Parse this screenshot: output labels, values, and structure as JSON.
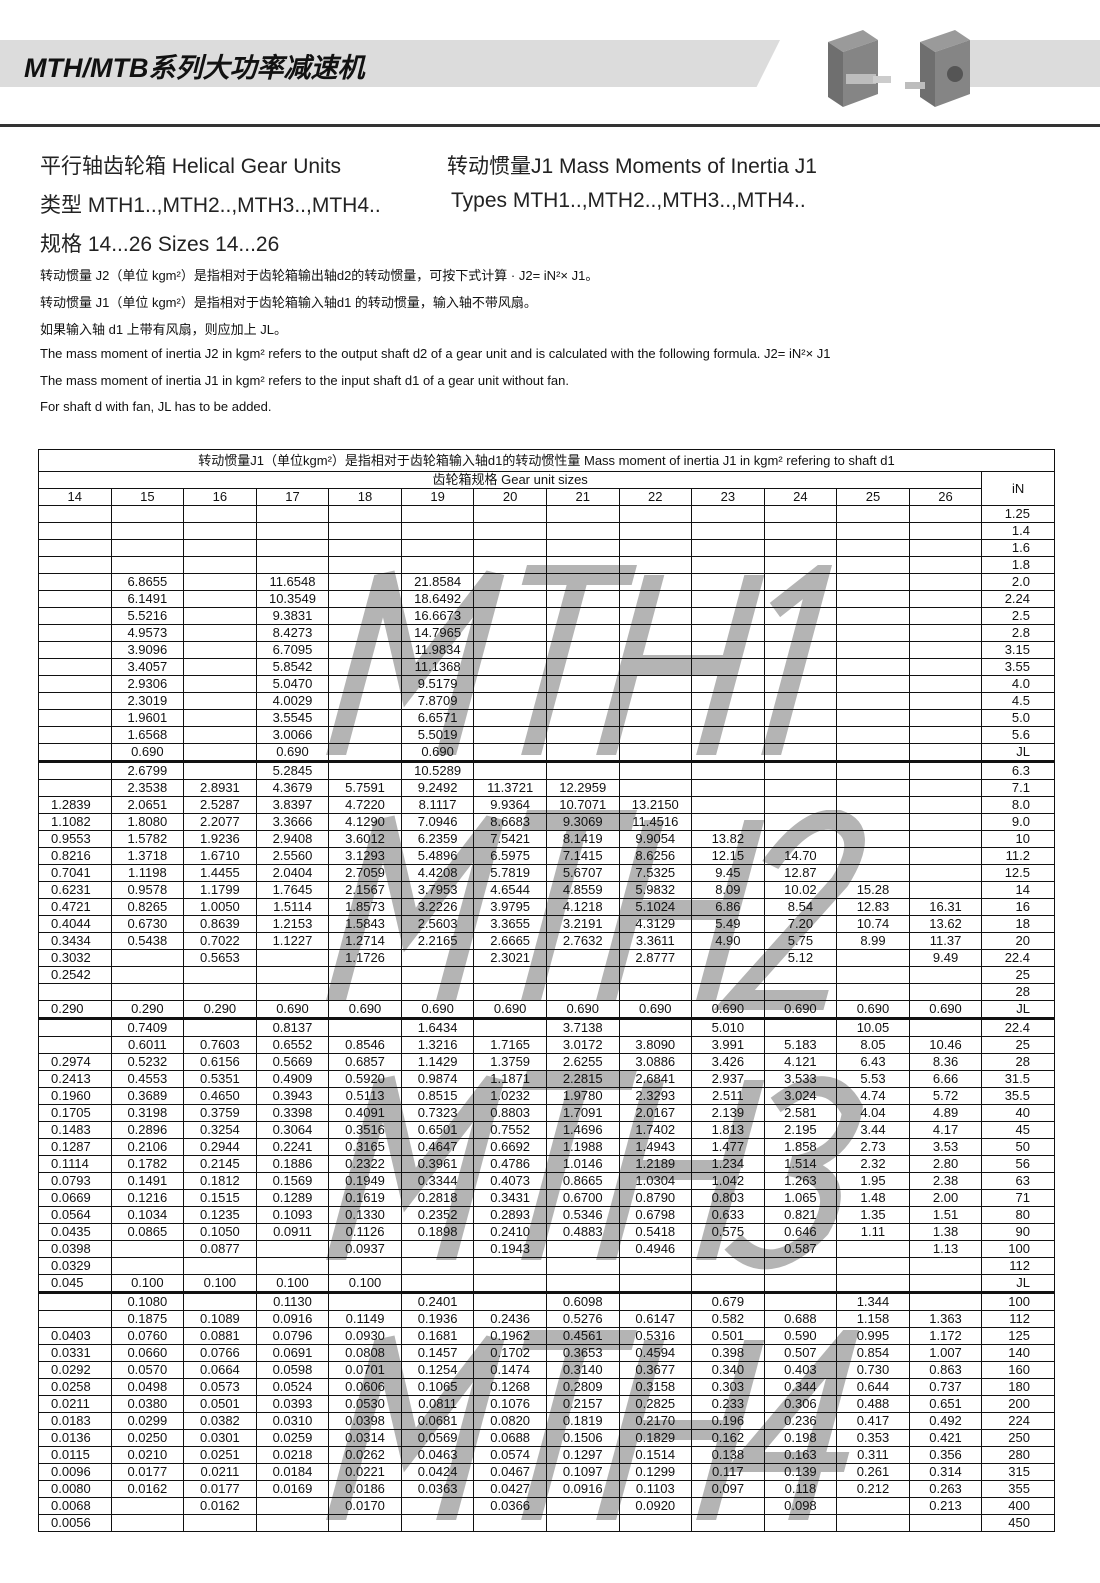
{
  "header": {
    "title": "MTH/MTB系列大功率减速机",
    "product_images": [
      "helical-gear-unit-icon",
      "bevel-helical-gear-unit-icon"
    ]
  },
  "headings": {
    "line1_left": "平行轴齿轮箱 Helical Gear Units",
    "line1_right": "转动惯量J1 Mass Moments of Inertia J1",
    "line2_left": "类型 MTH1..,MTH2..,MTH3..,MTH4..",
    "line2_right": "Types MTH1..,MTH2..,MTH3..,MTH4..",
    "line3": "规格 14...26 Sizes 14...26"
  },
  "notes": [
    "转动惯量 J2（单位 kgm²）是指相对于齿轮箱输出轴d2的转动惯量，可按下式计算 · J2= iN²× J1。",
    "转动惯量 J1（单位 kgm²）是指相对于齿轮箱输入轴d1 的转动惯量，输入轴不带风扇。",
    "如果输入轴 d1 上带有风扇，则应加上 JL。",
    "The mass moment of inertia J2 in kgm² refers to the output shaft d2 of a gear unit and is calculated with the following formula. J2= iN²× J1",
    "The mass moment of inertia J1 in kgm² refers to the input shaft d1 of a gear unit without fan.",
    "For shaft d with fan, JL has to be added."
  ],
  "table": {
    "caption": "转动惯量J1（单位kgm²）是指相对于齿轮箱输入轴d1的转动惯性量 Mass moment of inertia J1 in kgm² refering to shaft d1",
    "group_header": "齿轮箱规格   Gear unit sizes",
    "iN_header": "iN",
    "sizes": [
      "14",
      "15",
      "16",
      "17",
      "18",
      "19",
      "20",
      "21",
      "22",
      "23",
      "24",
      "25",
      "26"
    ],
    "sections": [
      {
        "watermark": "MTH1",
        "rows": [
          [
            "",
            "",
            "",
            "",
            "",
            "",
            "",
            "",
            "",
            "",
            "",
            "",
            "",
            "1.25"
          ],
          [
            "",
            "",
            "",
            "",
            "",
            "",
            "",
            "",
            "",
            "",
            "",
            "",
            "",
            "1.4"
          ],
          [
            "",
            "",
            "",
            "",
            "",
            "",
            "",
            "",
            "",
            "",
            "",
            "",
            "",
            "1.6"
          ],
          [
            "",
            "",
            "",
            "",
            "",
            "",
            "",
            "",
            "",
            "",
            "",
            "",
            "",
            "1.8"
          ],
          [
            "",
            "6.8655",
            "",
            "11.6548",
            "",
            "21.8584",
            "",
            "",
            "",
            "",
            "",
            "",
            "",
            "2.0"
          ],
          [
            "",
            "6.1491",
            "",
            "10.3549",
            "",
            "18.6492",
            "",
            "",
            "",
            "",
            "",
            "",
            "",
            "2.24"
          ],
          [
            "",
            "5.5216",
            "",
            "9.3831",
            "",
            "16.6673",
            "",
            "",
            "",
            "",
            "",
            "",
            "",
            "2.5"
          ],
          [
            "",
            "4.9573",
            "",
            "8.4273",
            "",
            "14.7965",
            "",
            "",
            "",
            "",
            "",
            "",
            "",
            "2.8"
          ],
          [
            "",
            "3.9096",
            "",
            "6.7095",
            "",
            "11.9834",
            "",
            "",
            "",
            "",
            "",
            "",
            "",
            "3.15"
          ],
          [
            "",
            "3.4057",
            "",
            "5.8542",
            "",
            "11.1368",
            "",
            "",
            "",
            "",
            "",
            "",
            "",
            "3.55"
          ],
          [
            "",
            "2.9306",
            "",
            "5.0470",
            "",
            "9.5179",
            "",
            "",
            "",
            "",
            "",
            "",
            "",
            "4.0"
          ],
          [
            "",
            "2.3019",
            "",
            "4.0029",
            "",
            "7.8709",
            "",
            "",
            "",
            "",
            "",
            "",
            "",
            "4.5"
          ],
          [
            "",
            "1.9601",
            "",
            "3.5545",
            "",
            "6.6571",
            "",
            "",
            "",
            "",
            "",
            "",
            "",
            "5.0"
          ],
          [
            "",
            "1.6568",
            "",
            "3.0066",
            "",
            "5.5019",
            "",
            "",
            "",
            "",
            "",
            "",
            "",
            "5.6"
          ],
          [
            "",
            "0.690",
            "",
            "0.690",
            "",
            "0.690",
            "",
            "",
            "",
            "",
            "",
            "",
            "",
            "JL"
          ]
        ]
      },
      {
        "watermark": "MTH2",
        "rows": [
          [
            "",
            "2.6799",
            "",
            "5.2845",
            "",
            "10.5289",
            "",
            "",
            "",
            "",
            "",
            "",
            "",
            "6.3"
          ],
          [
            "",
            "2.3538",
            "2.8931",
            "4.3679",
            "5.7591",
            "9.2492",
            "11.3721",
            "12.2959",
            "",
            "",
            "",
            "",
            "",
            "7.1"
          ],
          [
            "1.2839",
            "2.0651",
            "2.5287",
            "3.8397",
            "4.7220",
            "8.1117",
            "9.9364",
            "10.7071",
            "13.2150",
            "",
            "",
            "",
            "",
            "8.0"
          ],
          [
            "1.1082",
            "1.8080",
            "2.2077",
            "3.3666",
            "4.1290",
            "7.0946",
            "8.6683",
            "9.3069",
            "11.4516",
            "",
            "",
            "",
            "",
            "9.0"
          ],
          [
            "0.9553",
            "1.5782",
            "1.9236",
            "2.9408",
            "3.6012",
            "6.2359",
            "7.5421",
            "8.1419",
            "9.9054",
            "13.82",
            "",
            "",
            "",
            "10"
          ],
          [
            "0.8216",
            "1.3718",
            "1.6710",
            "2.5560",
            "3.1293",
            "5.4896",
            "6.5975",
            "7.1415",
            "8.6256",
            "12.15",
            "14.70",
            "",
            "",
            "11.2"
          ],
          [
            "0.7041",
            "1.1198",
            "1.4455",
            "2.0404",
            "2.7059",
            "4.4208",
            "5.7819",
            "5.6707",
            "7.5325",
            "9.45",
            "12.87",
            "",
            "",
            "12.5"
          ],
          [
            "0.6231",
            "0.9578",
            "1.1799",
            "1.7645",
            "2.1567",
            "3.7953",
            "4.6544",
            "4.8559",
            "5.9832",
            "8.09",
            "10.02",
            "15.28",
            "",
            "14"
          ],
          [
            "0.4721",
            "0.8265",
            "1.0050",
            "1.5114",
            "1.8573",
            "3.2226",
            "3.9795",
            "4.1218",
            "5.1024",
            "6.86",
            "8.54",
            "12.83",
            "16.31",
            "16"
          ],
          [
            "0.4044",
            "0.6730",
            "0.8639",
            "1.2153",
            "1.5843",
            "2.5603",
            "3.3655",
            "3.2191",
            "4.3129",
            "5.49",
            "7.20",
            "10.74",
            "13.62",
            "18"
          ],
          [
            "0.3434",
            "0.5438",
            "0.7022",
            "1.1227",
            "1.2714",
            "2.2165",
            "2.6665",
            "2.7632",
            "3.3611",
            "4.90",
            "5.75",
            "8.99",
            "11.37",
            "20"
          ],
          [
            "0.3032",
            "",
            "0.5653",
            "",
            "1.1726",
            "",
            "2.3021",
            "",
            "2.8777",
            "",
            "5.12",
            "",
            "9.49",
            "22.4"
          ],
          [
            "0.2542",
            "",
            "",
            "",
            "",
            "",
            "",
            "",
            "",
            "",
            "",
            "",
            "",
            "25"
          ],
          [
            "",
            "",
            "",
            "",
            "",
            "",
            "",
            "",
            "",
            "",
            "",
            "",
            "",
            "28"
          ],
          [
            "0.290",
            "0.290",
            "0.290",
            "0.690",
            "0.690",
            "0.690",
            "0.690",
            "0.690",
            "0.690",
            "0.690",
            "0.690",
            "0.690",
            "0.690",
            "JL"
          ]
        ]
      },
      {
        "watermark": "MTH3",
        "rows": [
          [
            "",
            "0.7409",
            "",
            "0.8137",
            "",
            "1.6434",
            "",
            "3.7138",
            "",
            "5.010",
            "",
            "10.05",
            "",
            "22.4"
          ],
          [
            "",
            "0.6011",
            "0.7603",
            "0.6552",
            "0.8546",
            "1.3216",
            "1.7165",
            "3.0172",
            "3.8090",
            "3.991",
            "5.183",
            "8.05",
            "10.46",
            "25"
          ],
          [
            "0.2974",
            "0.5232",
            "0.6156",
            "0.5669",
            "0.6857",
            "1.1429",
            "1.3759",
            "2.6255",
            "3.0886",
            "3.426",
            "4.121",
            "6.43",
            "8.36",
            "28"
          ],
          [
            "0.2413",
            "0.4553",
            "0.5351",
            "0.4909",
            "0.5920",
            "0.9874",
            "1.1871",
            "2.2815",
            "2.6841",
            "2.937",
            "3.533",
            "5.53",
            "6.66",
            "31.5"
          ],
          [
            "0.1960",
            "0.3689",
            "0.4650",
            "0.3943",
            "0.5113",
            "0.8515",
            "1.0232",
            "1.9780",
            "2.3293",
            "2.511",
            "3.024",
            "4.74",
            "5.72",
            "35.5"
          ],
          [
            "0.1705",
            "0.3198",
            "0.3759",
            "0.3398",
            "0.4091",
            "0.7323",
            "0.8803",
            "1.7091",
            "2.0167",
            "2.139",
            "2.581",
            "4.04",
            "4.89",
            "40"
          ],
          [
            "0.1483",
            "0.2896",
            "0.3254",
            "0.3064",
            "0.3516",
            "0.6501",
            "0.7552",
            "1.4696",
            "1.7402",
            "1.813",
            "2.195",
            "3.44",
            "4.17",
            "45"
          ],
          [
            "0.1287",
            "0.2106",
            "0.2944",
            "0.2241",
            "0.3165",
            "0.4647",
            "0.6692",
            "1.1988",
            "1.4943",
            "1.477",
            "1.858",
            "2.73",
            "3.53",
            "50"
          ],
          [
            "0.1114",
            "0.1782",
            "0.2145",
            "0.1886",
            "0.2322",
            "0.3961",
            "0.4786",
            "1.0146",
            "1.2189",
            "1.234",
            "1.514",
            "2.32",
            "2.80",
            "56"
          ],
          [
            "0.0793",
            "0.1491",
            "0.1812",
            "0.1569",
            "0.1949",
            "0.3344",
            "0.4073",
            "0.8665",
            "1.0304",
            "1.042",
            "1.263",
            "1.95",
            "2.38",
            "63"
          ],
          [
            "0.0669",
            "0.1216",
            "0.1515",
            "0.1289",
            "0.1619",
            "0.2818",
            "0.3431",
            "0.6700",
            "0.8790",
            "0.803",
            "1.065",
            "1.48",
            "2.00",
            "71"
          ],
          [
            "0.0564",
            "0.1034",
            "0.1235",
            "0.1093",
            "0.1330",
            "0.2352",
            "0.2893",
            "0.5346",
            "0.6798",
            "0.633",
            "0.821",
            "1.35",
            "1.51",
            "80"
          ],
          [
            "0.0435",
            "0.0865",
            "0.1050",
            "0.0911",
            "0.1126",
            "0.1898",
            "0.2410",
            "0.4883",
            "0.5418",
            "0.575",
            "0.646",
            "1.11",
            "1.38",
            "90"
          ],
          [
            "0.0398",
            "",
            "0.0877",
            "",
            "0.0937",
            "",
            "0.1943",
            "",
            "0.4946",
            "",
            "0.587",
            "",
            "1.13",
            "100"
          ],
          [
            "0.0329",
            "",
            "",
            "",
            "",
            "",
            "",
            "",
            "",
            "",
            "",
            "",
            "",
            "112"
          ],
          [
            "0.045",
            "0.100",
            "0.100",
            "0.100",
            "0.100",
            "",
            "",
            "",
            "",
            "",
            "",
            "",
            "",
            "JL"
          ]
        ]
      },
      {
        "watermark": "MTH4",
        "rows": [
          [
            "",
            "0.1080",
            "",
            "0.1130",
            "",
            "0.2401",
            "",
            "0.6098",
            "",
            "0.679",
            "",
            "1.344",
            "",
            "100"
          ],
          [
            "",
            "0.1875",
            "0.1089",
            "0.0916",
            "0.1149",
            "0.1936",
            "0.2436",
            "0.5276",
            "0.6147",
            "0.582",
            "0.688",
            "1.158",
            "1.363",
            "112"
          ],
          [
            "0.0403",
            "0.0760",
            "0.0881",
            "0.0796",
            "0.0930",
            "0.1681",
            "0.1962",
            "0.4561",
            "0.5316",
            "0.501",
            "0.590",
            "0.995",
            "1.172",
            "125"
          ],
          [
            "0.0331",
            "0.0660",
            "0.0766",
            "0.0691",
            "0.0808",
            "0.1457",
            "0.1702",
            "0.3653",
            "0.4594",
            "0.398",
            "0.507",
            "0.854",
            "1.007",
            "140"
          ],
          [
            "0.0292",
            "0.0570",
            "0.0664",
            "0.0598",
            "0.0701",
            "0.1254",
            "0.1474",
            "0.3140",
            "0.3677",
            "0.340",
            "0.403",
            "0.730",
            "0.863",
            "160"
          ],
          [
            "0.0258",
            "0.0498",
            "0.0573",
            "0.0524",
            "0.0606",
            "0.1065",
            "0.1268",
            "0.2809",
            "0.3158",
            "0.303",
            "0.344",
            "0.644",
            "0.737",
            "180"
          ],
          [
            "0.0211",
            "0.0380",
            "0.0501",
            "0.0393",
            "0.0530",
            "0.0811",
            "0.1076",
            "0.2157",
            "0.2825",
            "0.233",
            "0.306",
            "0.488",
            "0.651",
            "200"
          ],
          [
            "0.0183",
            "0.0299",
            "0.0382",
            "0.0310",
            "0.0398",
            "0.0681",
            "0.0820",
            "0.1819",
            "0.2170",
            "0.196",
            "0.236",
            "0.417",
            "0.492",
            "224"
          ],
          [
            "0.0136",
            "0.0250",
            "0.0301",
            "0.0259",
            "0.0314",
            "0.0569",
            "0.0688",
            "0.1506",
            "0.1829",
            "0.162",
            "0.198",
            "0.353",
            "0.421",
            "250"
          ],
          [
            "0.0115",
            "0.0210",
            "0.0251",
            "0.0218",
            "0.0262",
            "0.0463",
            "0.0574",
            "0.1297",
            "0.1514",
            "0.138",
            "0.163",
            "0.311",
            "0.356",
            "280"
          ],
          [
            "0.0096",
            "0.0177",
            "0.0211",
            "0.0184",
            "0.0221",
            "0.0424",
            "0.0467",
            "0.1097",
            "0.1299",
            "0.117",
            "0.139",
            "0.261",
            "0.314",
            "315"
          ],
          [
            "0.0080",
            "0.0162",
            "0.0177",
            "0.0169",
            "0.0186",
            "0.0363",
            "0.0427",
            "0.0916",
            "0.1103",
            "0.097",
            "0.118",
            "0.212",
            "0.263",
            "355"
          ],
          [
            "0.0068",
            "",
            "0.0162",
            "",
            "0.0170",
            "",
            "0.0366",
            "",
            "0.0920",
            "",
            "0.098",
            "",
            "0.213",
            "400"
          ],
          [
            "0.0056",
            "",
            "",
            "",
            "",
            "",
            "",
            "",
            "",
            "",
            "",
            "",
            "",
            "450"
          ]
        ]
      }
    ]
  }
}
